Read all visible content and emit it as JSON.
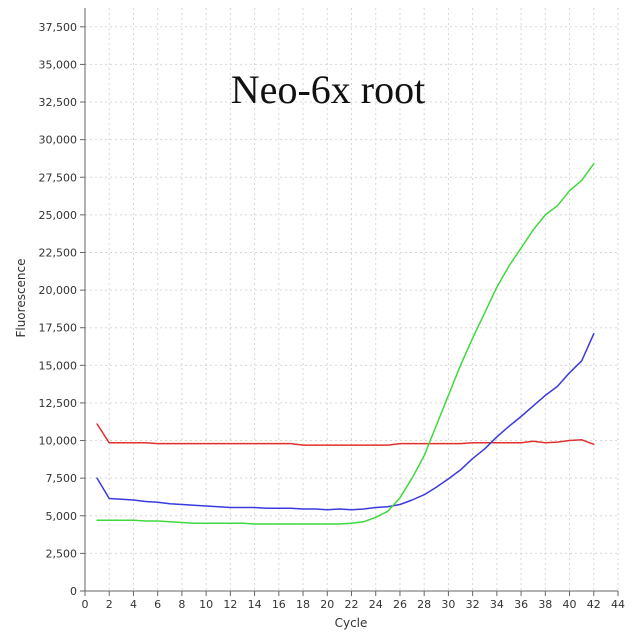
{
  "chart_data": {
    "type": "line",
    "title": "Neo-6x root",
    "xlabel": "Cycle",
    "ylabel": "Fluorescence",
    "xlim": [
      0,
      44
    ],
    "ylim": [
      0,
      38750
    ],
    "x_ticks": [
      0,
      2,
      4,
      6,
      8,
      10,
      12,
      14,
      16,
      18,
      20,
      22,
      24,
      26,
      28,
      30,
      32,
      34,
      36,
      38,
      40,
      42,
      44
    ],
    "y_ticks": [
      0,
      2500,
      5000,
      7500,
      10000,
      12500,
      15000,
      17500,
      20000,
      22500,
      25000,
      27500,
      30000,
      32500,
      35000,
      37500
    ],
    "x_tick_labels": [
      "0",
      "2",
      "4",
      "6",
      "8",
      "10",
      "12",
      "14",
      "16",
      "18",
      "20",
      "22",
      "24",
      "26",
      "28",
      "30",
      "32",
      "34",
      "36",
      "38",
      "40",
      "42",
      "44"
    ],
    "y_tick_labels": [
      "0",
      "2,500",
      "5,000",
      "7,500",
      "10,000",
      "12,500",
      "15,000",
      "17,500",
      "20,000",
      "22,500",
      "25,000",
      "27,500",
      "30,000",
      "32,500",
      "35,000",
      "37,500"
    ],
    "grid": true,
    "x": [
      1,
      2,
      3,
      4,
      5,
      6,
      7,
      8,
      9,
      10,
      11,
      12,
      13,
      14,
      15,
      16,
      17,
      18,
      19,
      20,
      21,
      22,
      23,
      24,
      25,
      26,
      27,
      28,
      29,
      30,
      31,
      32,
      33,
      34,
      35,
      36,
      37,
      38,
      39,
      40,
      41,
      42
    ],
    "series": [
      {
        "color": "#e03030",
        "values": [
          11100,
          9850,
          9850,
          9850,
          9850,
          9800,
          9800,
          9800,
          9800,
          9800,
          9800,
          9800,
          9800,
          9800,
          9800,
          9800,
          9800,
          9700,
          9700,
          9700,
          9700,
          9700,
          9700,
          9700,
          9700,
          9800,
          9800,
          9800,
          9800,
          9800,
          9800,
          9850,
          9850,
          9850,
          9850,
          9850,
          9950,
          9850,
          9900,
          10000,
          10050,
          9750
        ]
      },
      {
        "color": "#3a3adf",
        "values": [
          7500,
          6150,
          6100,
          6050,
          5950,
          5900,
          5800,
          5750,
          5700,
          5650,
          5600,
          5550,
          5550,
          5550,
          5500,
          5500,
          5500,
          5450,
          5450,
          5400,
          5450,
          5400,
          5450,
          5550,
          5600,
          5750,
          6050,
          6400,
          6900,
          7450,
          8050,
          8800,
          9450,
          10250,
          10950,
          11600,
          12300,
          13000,
          13600,
          14500,
          15300,
          17100
        ]
      },
      {
        "color": "#3fd83f",
        "values": [
          4700,
          4700,
          4700,
          4700,
          4650,
          4650,
          4600,
          4550,
          4500,
          4500,
          4500,
          4500,
          4500,
          4450,
          4450,
          4450,
          4450,
          4450,
          4450,
          4450,
          4450,
          4500,
          4600,
          4900,
          5300,
          6200,
          7500,
          9000,
          11000,
          13000,
          15000,
          16800,
          18500,
          20200,
          21600,
          22800,
          24000,
          25000,
          25600,
          26600,
          27300,
          28400
        ]
      }
    ]
  }
}
